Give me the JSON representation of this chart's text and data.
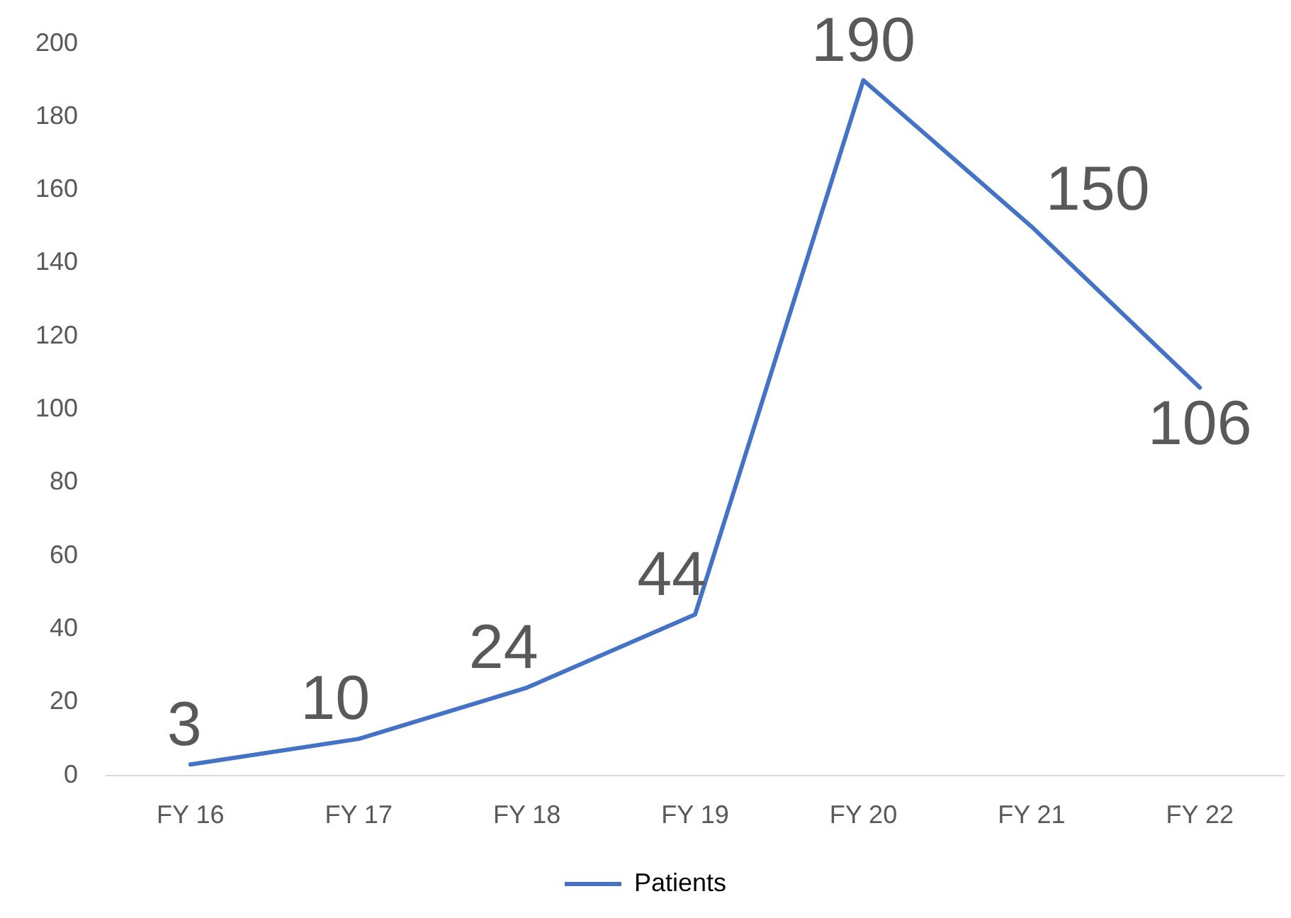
{
  "chart_data": {
    "type": "line",
    "categories": [
      "FY 16",
      "FY 17",
      "FY 18",
      "FY 19",
      "FY 20",
      "FY 21",
      "FY 22"
    ],
    "series": [
      {
        "name": "Patients",
        "color": "#4472c4",
        "values": [
          3,
          10,
          24,
          44,
          190,
          150,
          106
        ]
      }
    ],
    "ylim": [
      0,
      200
    ],
    "yticks": [
      0,
      20,
      40,
      60,
      80,
      100,
      120,
      140,
      160,
      180,
      200
    ],
    "grid": false,
    "legend": "bottom",
    "marker": "none",
    "line_style": "solid",
    "data_labels": true
  }
}
